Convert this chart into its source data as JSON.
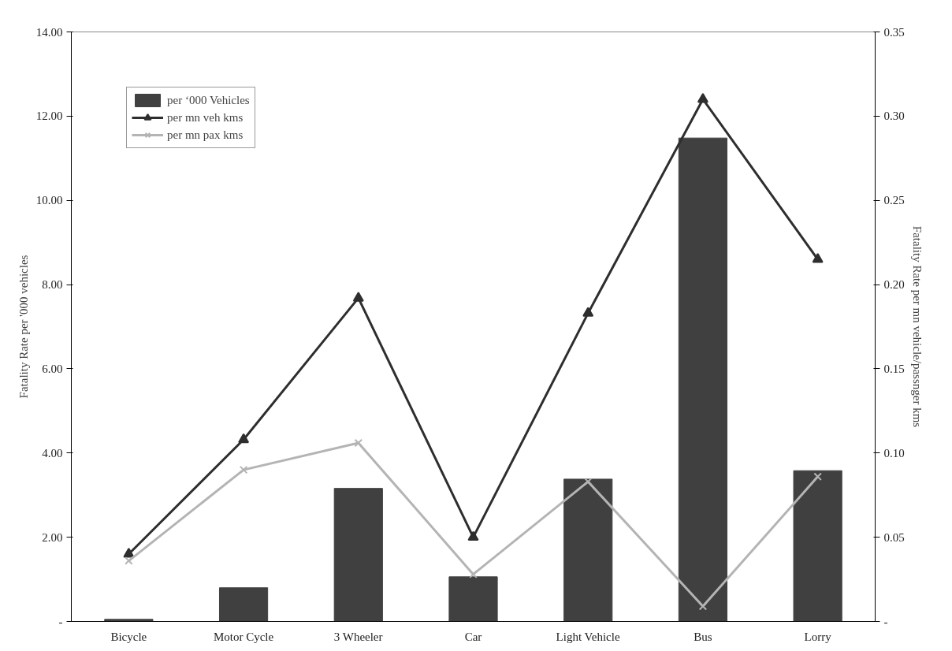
{
  "chart_data": {
    "type": "bar",
    "categories": [
      "Bicycle",
      "Motor Cycle",
      "3 Wheeler",
      "Car",
      "Light Vehicle",
      "Bus",
      "Lorry"
    ],
    "ylabel": "Fatality Rate per '000 vehicles",
    "y2label": "Fatality Rate per mn vehicle/passnger kms",
    "ylim": [
      0,
      14
    ],
    "yticks": [
      {
        "value": 0,
        "label": "-"
      },
      {
        "value": 2,
        "label": "2.00"
      },
      {
        "value": 4,
        "label": "4.00"
      },
      {
        "value": 6,
        "label": "6.00"
      },
      {
        "value": 8,
        "label": "8.00"
      },
      {
        "value": 10,
        "label": "10.00"
      },
      {
        "value": 12,
        "label": "12.00"
      },
      {
        "value": 14,
        "label": "14.00"
      }
    ],
    "y2lim": [
      0,
      0.35
    ],
    "y2ticks": [
      {
        "value": 0,
        "label": "-"
      },
      0.05,
      {
        "value": 0.1,
        "label": "0.10"
      },
      0.15,
      {
        "value": 0.2,
        "label": "0.20"
      },
      0.25,
      {
        "value": 0.3,
        "label": "0.30"
      },
      0.35
    ],
    "legend": "top left",
    "grid": false,
    "series": [
      {
        "name": "per ‘000 Vehicles",
        "color": "#404040",
        "values": [
          0.05,
          0.8,
          3.16,
          1.06,
          3.38,
          11.48,
          3.58
        ]
      },
      {
        "name": "per mn veh kms",
        "type": "line",
        "axis": "y2",
        "color": "#2e2e2e",
        "marker": "triangle",
        "values": [
          0.04,
          0.108,
          0.192,
          0.05,
          0.183,
          0.31,
          0.215
        ]
      },
      {
        "name": "per mn pax kms",
        "type": "line",
        "axis": "y2",
        "color": "#b4b4b4",
        "marker": "cross",
        "values": [
          0.036,
          0.09,
          0.106,
          0.028,
          0.083,
          0.009,
          0.086
        ]
      }
    ]
  }
}
